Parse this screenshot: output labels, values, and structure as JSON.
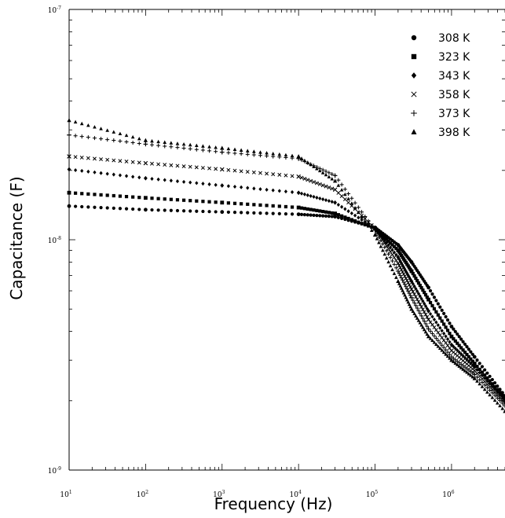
{
  "chart_data": {
    "type": "scatter",
    "title": "",
    "xlabel": "Frequency (Hz)",
    "ylabel": "Capacitance (F)",
    "x_scale": "log",
    "y_scale": "log",
    "xlim": [
      10,
      5000000
    ],
    "ylim": [
      1e-09,
      1e-07
    ],
    "grid": false,
    "legend_placement": "top-right",
    "x_ticks": [
      {
        "value": 10,
        "base": "10",
        "exp": "1"
      },
      {
        "value": 100,
        "base": "10",
        "exp": "2"
      },
      {
        "value": 1000,
        "base": "10",
        "exp": "3"
      },
      {
        "value": 10000,
        "base": "10",
        "exp": "4"
      },
      {
        "value": 100000,
        "base": "10",
        "exp": "5"
      },
      {
        "value": 1000000,
        "base": "10",
        "exp": "6"
      }
    ],
    "y_ticks": [
      {
        "value": 1e-07,
        "base": "10",
        "exp": "-7"
      },
      {
        "value": 1e-08,
        "base": "10",
        "exp": "-8"
      },
      {
        "value": 1e-09,
        "base": "10",
        "exp": "-9"
      }
    ],
    "series": [
      {
        "name": "308 K",
        "marker": "circle",
        "x": [
          10,
          100,
          1000,
          10000,
          30000,
          100000,
          200000,
          300000,
          500000,
          1000000,
          2000000,
          5000000
        ],
        "y": [
          1.4e-08,
          1.35e-08,
          1.32e-08,
          1.29e-08,
          1.26e-08,
          1.13e-08,
          9.5e-09,
          8e-09,
          6.2e-09,
          4.2e-09,
          3.1e-09,
          2.1e-09
        ]
      },
      {
        "name": "323 K",
        "marker": "square",
        "x": [
          10,
          100,
          1000,
          10000,
          30000,
          100000,
          200000,
          300000,
          500000,
          1000000,
          2000000,
          5000000
        ],
        "y": [
          1.6e-08,
          1.52e-08,
          1.45e-08,
          1.38e-08,
          1.3e-08,
          1.12e-08,
          9e-09,
          7.3e-09,
          5.5e-09,
          3.8e-09,
          2.9e-09,
          2.05e-09
        ]
      },
      {
        "name": "343 K",
        "marker": "diamond",
        "x": [
          10,
          100,
          1000,
          10000,
          30000,
          100000,
          200000,
          300000,
          500000,
          1000000,
          2000000,
          5000000
        ],
        "y": [
          2.02e-08,
          1.85e-08,
          1.72e-08,
          1.6e-08,
          1.45e-08,
          1.12e-08,
          8.4e-09,
          6.6e-09,
          4.9e-09,
          3.5e-09,
          2.8e-09,
          2e-09
        ]
      },
      {
        "name": "358 K",
        "marker": "cross",
        "x": [
          10,
          100,
          1000,
          10000,
          30000,
          100000,
          200000,
          300000,
          500000,
          1000000,
          2000000,
          5000000
        ],
        "y": [
          2.3e-08,
          2.15e-08,
          2.02e-08,
          1.88e-08,
          1.65e-08,
          1.12e-08,
          7.9e-09,
          6.1e-09,
          4.5e-09,
          3.3e-09,
          2.7e-09,
          1.95e-09
        ]
      },
      {
        "name": "373 K",
        "marker": "plus",
        "x": [
          10,
          100,
          1000,
          10000,
          30000,
          100000,
          200000,
          300000,
          500000,
          1000000,
          2000000,
          5000000
        ],
        "y": [
          2.85e-08,
          2.6e-08,
          2.4e-08,
          2.25e-08,
          1.9e-08,
          1.1e-08,
          7.3e-09,
          5.6e-09,
          4.1e-09,
          3.1e-09,
          2.6e-09,
          1.9e-09
        ]
      },
      {
        "name": "398 K",
        "marker": "triangle",
        "x": [
          10,
          100,
          1000,
          10000,
          30000,
          100000,
          200000,
          300000,
          500000,
          1000000,
          2000000,
          5000000
        ],
        "y": [
          3.3e-08,
          2.7e-08,
          2.5e-08,
          2.3e-08,
          1.8e-08,
          1.05e-08,
          6.6e-09,
          5e-09,
          3.8e-09,
          3e-09,
          2.5e-09,
          1.8e-09
        ]
      }
    ]
  }
}
